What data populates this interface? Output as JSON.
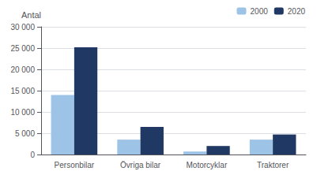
{
  "chart_data": {
    "type": "bar",
    "ylabel": "Antal",
    "categories": [
      "Personbilar",
      "Övriga bilar",
      "Motorcyklar",
      "Traktorer"
    ],
    "series": [
      {
        "name": "2000",
        "color": "#9dc3e6",
        "values": [
          14000,
          3500,
          700,
          3500
        ]
      },
      {
        "name": "2020",
        "color": "#1f3864",
        "values": [
          25200,
          6500,
          2000,
          4700
        ]
      }
    ],
    "ylim": [
      0,
      30000
    ],
    "yticks": [
      0,
      {
        "value": 5000,
        "label": "5 000"
      },
      {
        "value": 10000,
        "label": "10 000"
      },
      {
        "value": 15000,
        "label": "15 000"
      },
      {
        "value": 20000,
        "label": "20 000"
      },
      {
        "value": 25000,
        "label": "25 000"
      },
      {
        "value": 30000,
        "label": "30 000"
      }
    ],
    "grid": true,
    "legend": "top-right"
  }
}
